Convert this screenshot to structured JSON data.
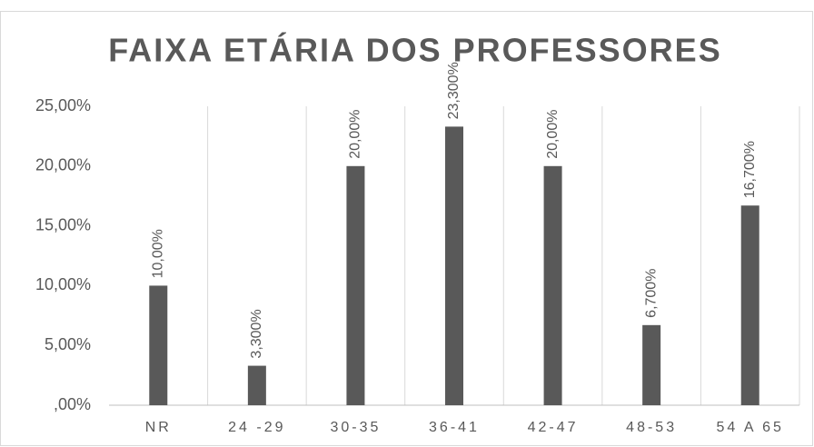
{
  "chart_data": {
    "type": "bar",
    "title": "FAIXA ETÁRIA DOS PROFESSORES",
    "categories": [
      "NR",
      "24 -29",
      "30-35",
      "36-41",
      "42-47",
      "48-53",
      "54 A 65"
    ],
    "values": [
      10,
      3.3,
      20,
      23.3,
      20,
      6.7,
      16.7
    ],
    "value_labels": [
      "10,00%",
      "3,300%",
      "20,00%",
      "23,300%",
      "20,00%",
      "6,700%",
      "16,700%"
    ],
    "color": "#595959",
    "ylim": [
      0,
      25
    ],
    "yticks": [
      {
        "value": 0,
        "label": ",00%"
      },
      {
        "value": 5,
        "label": "5,00%"
      },
      {
        "value": 10,
        "label": "10,00%"
      },
      {
        "value": 15,
        "label": "15,00%"
      },
      {
        "value": 20,
        "label": "20,00%"
      },
      {
        "value": 25,
        "label": "25,00%"
      }
    ],
    "grid": true
  }
}
